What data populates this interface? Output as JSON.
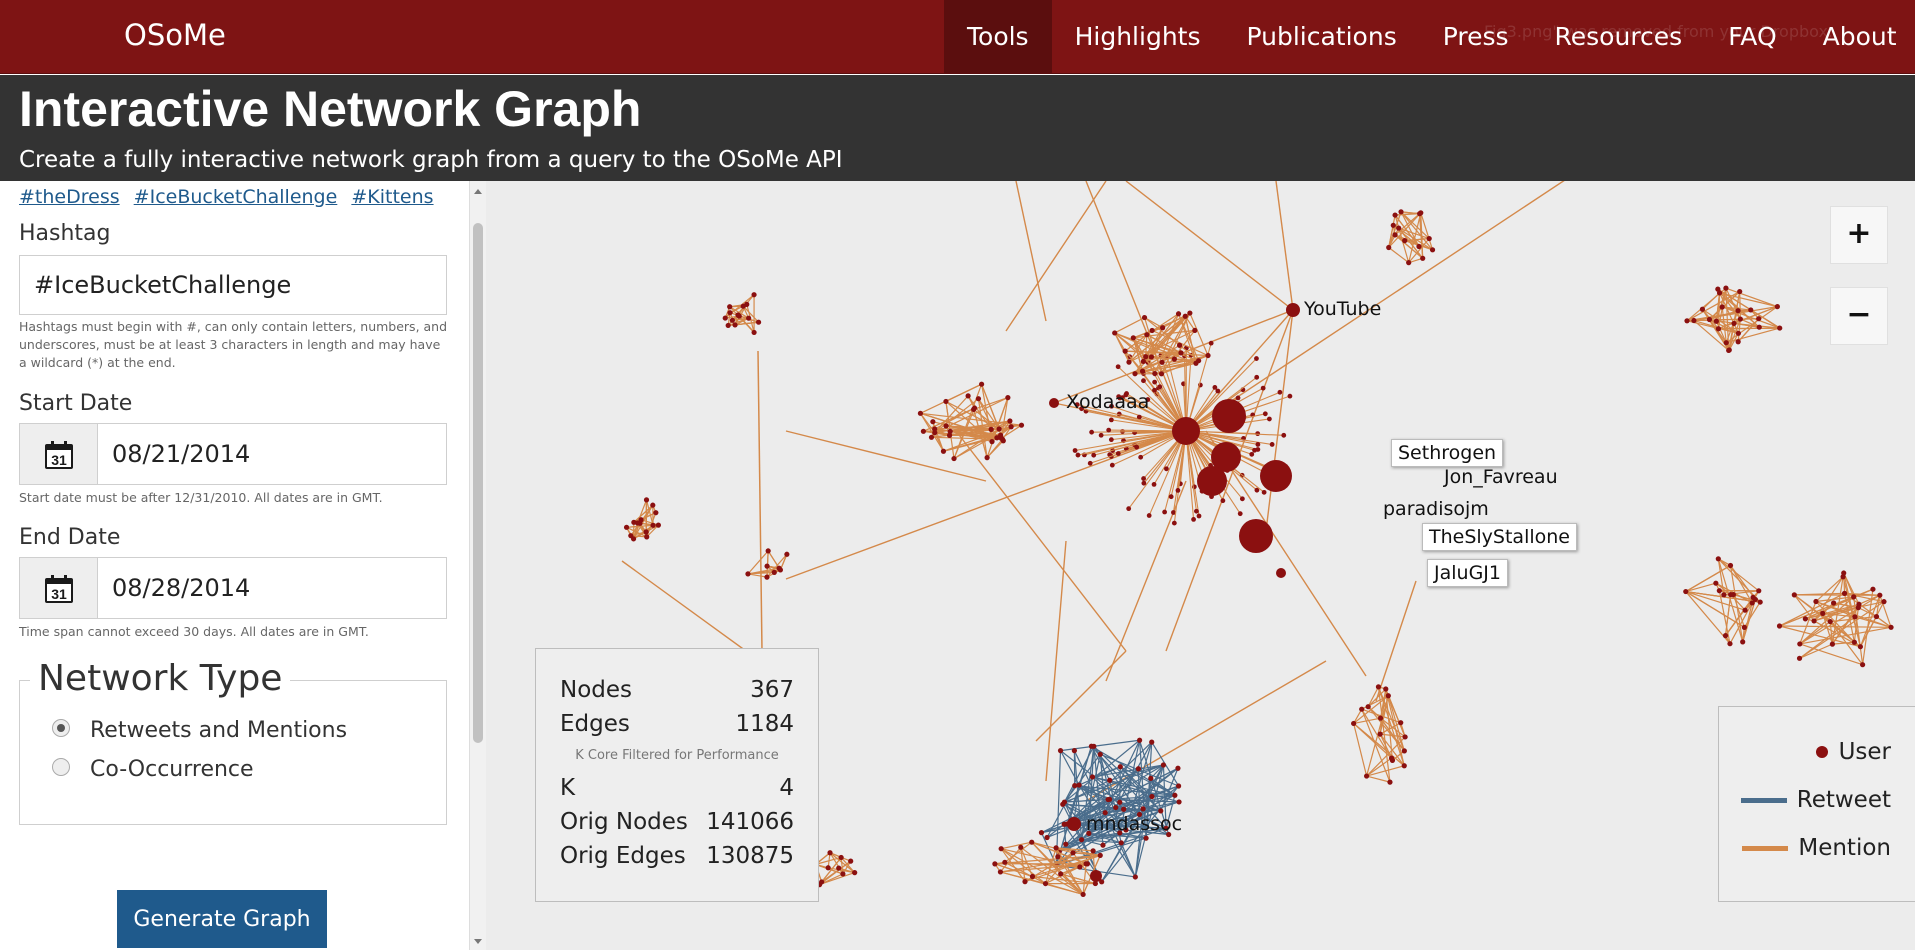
{
  "nav": {
    "brand": "OSoMe",
    "items": [
      "Tools",
      "Highlights",
      "Publications",
      "Press",
      "Resources",
      "FAQ",
      "About"
    ],
    "ghost_notification": "Fig3.png\" was removed from your Dropbox."
  },
  "header": {
    "title": "Interactive Network Graph",
    "subtitle": "Create a fully interactive network graph from a query to the OSoMe API"
  },
  "sidebar": {
    "example_links": [
      "#theDress",
      "#IceBucketChallenge",
      "#Kittens"
    ],
    "hashtag_label": "Hashtag",
    "hashtag_value": "#IceBucketChallenge",
    "hashtag_help": "Hashtags must begin with #, can only contain letters, numbers, and underscores, must be at least 3 characters in length and may have a wildcard (*) at the end.",
    "start_label": "Start Date",
    "start_value": "08/21/2014",
    "start_help": "Start date must be after 12/31/2010. All dates are in GMT.",
    "end_label": "End Date",
    "end_value": "08/28/2014",
    "end_help": "Time span cannot exceed 30 days. All dates are in GMT.",
    "calendar_day": "31",
    "network_type_label": "Network Type",
    "network_options": [
      "Retweets and Mentions",
      "Co-Occurrence"
    ],
    "network_selected": "Retweets and Mentions",
    "generate_label": "Generate Graph"
  },
  "graph": {
    "node_labels": {
      "youtube": "YouTube",
      "xodaaaa": "Xodaaaa",
      "sethrogen": "Sethrogen",
      "jon_favreau": "Jon_Favreau",
      "paradisojm": "paradisojm",
      "theslystallone": "TheSlyStallone",
      "jalugj1": "JaluGJ1",
      "mndassoc": "mndassoc"
    },
    "zoom_in": "+",
    "zoom_out": "−",
    "stats": {
      "nodes_label": "Nodes",
      "nodes": "367",
      "edges_label": "Edges",
      "edges": "1184",
      "note": "K Core Filtered for Performance",
      "k_label": "K",
      "k": "4",
      "orig_nodes_label": "Orig Nodes",
      "orig_nodes": "141066",
      "orig_edges_label": "Orig Edges",
      "orig_edges": "130875"
    },
    "legend": {
      "user": "User",
      "retweet": "Retweet",
      "mention": "Mention"
    }
  },
  "colors": {
    "navbar": "#7e1414",
    "header": "#333333",
    "link": "#1f5a8c",
    "node": "#8b1010",
    "mention_edge": "#d4894a",
    "retweet_edge": "#4a6d8c"
  },
  "icons": [
    "calendar-icon",
    "user-dot-icon",
    "retweet-line-icon",
    "mention-line-icon"
  ]
}
